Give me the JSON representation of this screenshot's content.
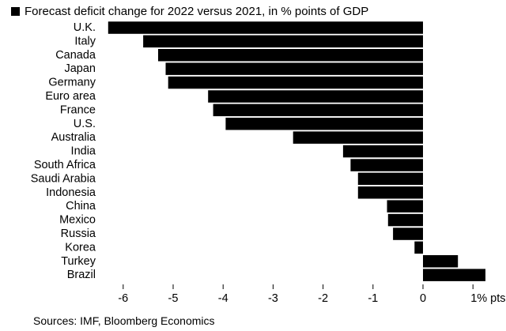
{
  "chart_data": {
    "type": "bar",
    "orientation": "horizontal",
    "title": "Forecast deficit change for 2022 versus 2021, in % points of GDP",
    "legend": "Forecast deficit change for 2022 versus 2021, in % points of GDP",
    "categories": [
      "U.K.",
      "Italy",
      "Canada",
      "Japan",
      "Germany",
      "Euro area",
      "France",
      "U.S.",
      "Australia",
      "India",
      "South Africa",
      "Saudi Arabia",
      "Indonesia",
      "China",
      "Mexico",
      "Russia",
      "Korea",
      "Turkey",
      "Brazil"
    ],
    "values": [
      -6.3,
      -5.6,
      -5.3,
      -5.15,
      -5.1,
      -4.3,
      -4.2,
      -3.95,
      -2.6,
      -1.6,
      -1.45,
      -1.3,
      -1.3,
      -0.72,
      -0.7,
      -0.6,
      -0.17,
      0.7,
      1.25
    ],
    "xlim": [
      -6.4,
      1.3
    ],
    "xticks": [
      -6,
      -5,
      -4,
      -3,
      -2,
      -1,
      0,
      1
    ],
    "xtick_labels": [
      "-6",
      "-5",
      "-4",
      "-3",
      "-2",
      "-1",
      "0",
      "1% pts."
    ],
    "grid": false,
    "bar_color": "#000000"
  },
  "source": "Sources: IMF, Bloomberg Economics"
}
